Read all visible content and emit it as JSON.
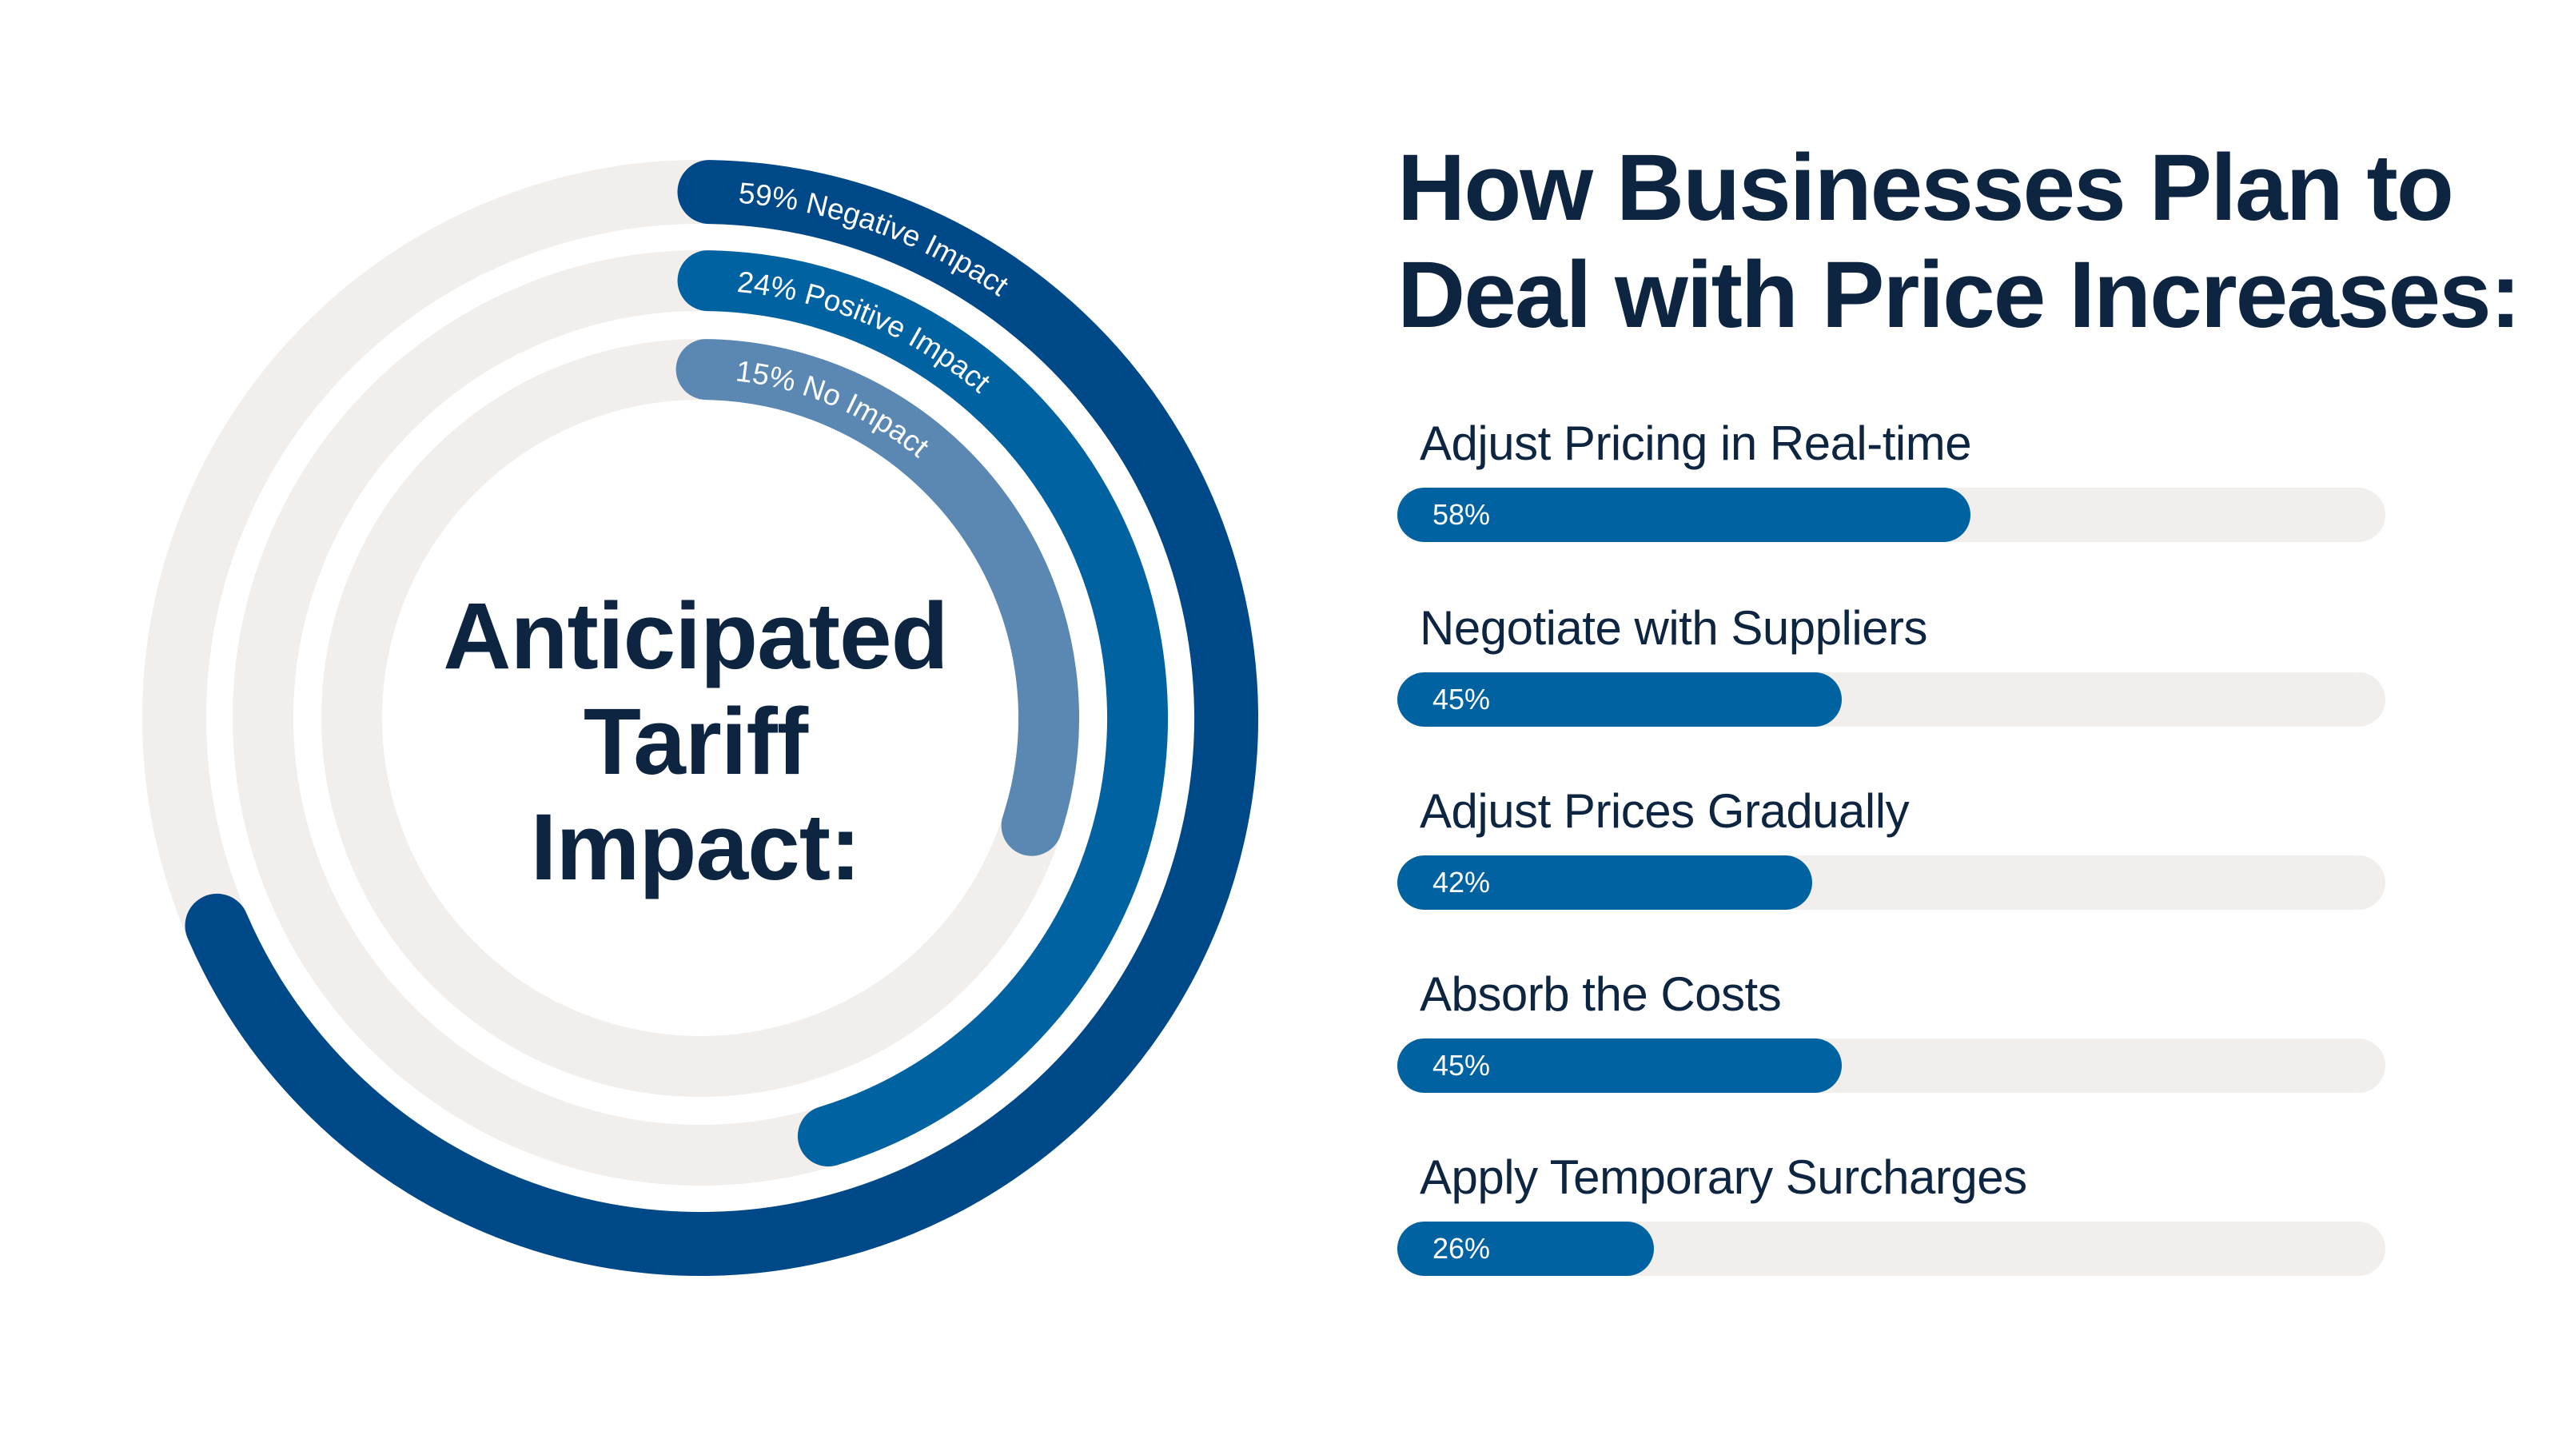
{
  "chart_data": [
    {
      "type": "radial-bar",
      "title": "Anticipated Tariff Impact:",
      "title_lines": [
        "Anticipated",
        "Tariff",
        "Impact:"
      ],
      "series": [
        {
          "label": "59% Negative Impact",
          "value": 59,
          "color": "#004988"
        },
        {
          "label": "24% Positive Impact",
          "value": 24,
          "color": "#0062a1"
        },
        {
          "label": "15%  No Impact",
          "value": 15,
          "color": "#5b88b3"
        }
      ],
      "track_color": "#f1eeeb"
    },
    {
      "type": "bar",
      "orientation": "horizontal",
      "title": "How Businesses Plan to Deal with Price Increases:",
      "title_lines": [
        "How Businesses Plan to",
        "Deal with Price Increases:"
      ],
      "categories": [
        "Adjust Pricing in Real-time",
        "Negotiate with Suppliers",
        "Adjust Prices Gradually",
        "Absorb the Costs",
        "Apply Temporary Surcharges"
      ],
      "values": [
        58,
        45,
        42,
        45,
        26
      ],
      "value_labels": [
        "58%",
        "45%",
        "42%",
        "45%",
        "26%"
      ],
      "xlim": [
        0,
        100
      ],
      "bar_color": "#0062a1",
      "track_color": "#f1eeeb"
    }
  ]
}
